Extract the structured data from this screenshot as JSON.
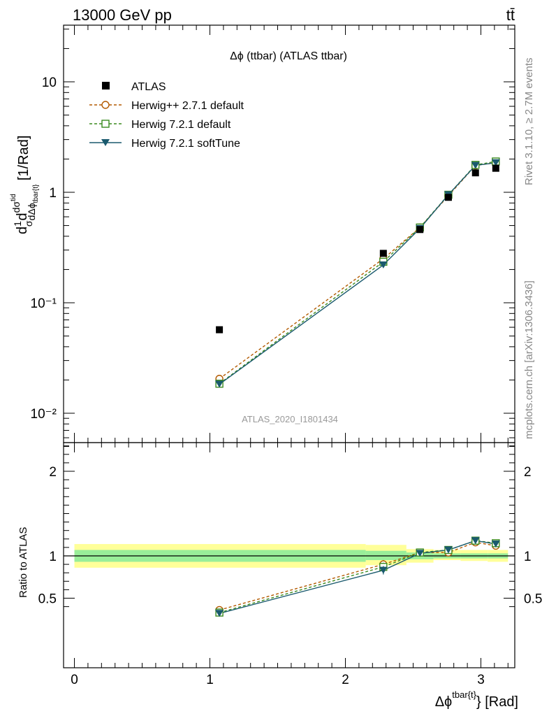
{
  "header": {
    "left": "13000 GeV pp",
    "right": "tt̄"
  },
  "side_labels": {
    "rivet": "Rivet 3.1.10, ≥ 2.7M events",
    "mcplots": "mcplots.cern.ch [arXiv:1306.3436]"
  },
  "chart_data": [
    {
      "type": "line",
      "panel": "main",
      "title": "Δϕ (ttbar) (ATLAS ttbar)",
      "watermark": "ATLAS_2020_I1801434",
      "ylabel": "d¹⁄σd dσ^{tid} / dΔϕ^{tbar{t}} [1/Rad]",
      "yscale": "log",
      "ylim": [
        0.005,
        35
      ],
      "xlim": [
        -0.08,
        3.25
      ],
      "y_tick_labels": [
        "10",
        "1",
        "10⁻¹",
        "10⁻²"
      ],
      "legend": {
        "placement": "top-left"
      },
      "data_points": {
        "name": "ATLAS",
        "x": [
          1.07,
          2.28,
          2.55,
          2.76,
          2.96,
          3.11
        ],
        "y": [
          0.057,
          0.28,
          0.46,
          0.9,
          1.5,
          1.65
        ]
      },
      "series": [
        {
          "name": "Herwig++ 2.7.1 default",
          "color": "#b35a00",
          "dash": "dashed",
          "marker": "open-circle",
          "x": [
            1.07,
            2.28,
            2.55,
            2.76,
            2.96,
            3.11
          ],
          "y": [
            0.0205,
            0.25,
            0.48,
            0.93,
            1.75,
            1.85
          ]
        },
        {
          "name": "Herwig 7.2.1 default",
          "color": "#3a8a1e",
          "dash": "dashed",
          "marker": "open-square",
          "x": [
            1.07,
            2.28,
            2.55,
            2.76,
            2.96,
            3.11
          ],
          "y": [
            0.0185,
            0.235,
            0.48,
            0.95,
            1.77,
            1.9
          ]
        },
        {
          "name": "Herwig 7.2.1 softTune",
          "color": "#1a5a6e",
          "dash": "solid",
          "marker": "filled-triangle-down",
          "x": [
            1.07,
            2.28,
            2.55,
            2.76,
            2.96,
            3.11
          ],
          "y": [
            0.0183,
            0.22,
            0.47,
            0.95,
            1.75,
            1.85
          ]
        }
      ]
    },
    {
      "type": "line",
      "panel": "ratio",
      "ylabel": "Ratio to ATLAS",
      "xlabel": "Δϕ^{tbar{t}} [Rad]",
      "ylim": [
        0.35,
        2.35
      ],
      "xlim": [
        -0.08,
        3.25
      ],
      "x_tick_labels": [
        "0",
        "1",
        "2",
        "3"
      ],
      "y_tick_labels": [
        "2",
        "1",
        "0.5"
      ],
      "bands": {
        "edges": [
          0.0,
          2.15,
          2.45,
          2.65,
          2.85,
          3.05,
          3.2
        ],
        "yellow_lo": [
          0.86,
          0.89,
          0.92,
          0.95,
          0.94,
          0.93
        ],
        "yellow_hi": [
          1.14,
          1.13,
          1.08,
          1.07,
          1.07,
          1.07
        ],
        "green_lo": [
          0.93,
          0.95,
          0.96,
          0.97,
          0.97,
          0.97
        ],
        "green_hi": [
          1.07,
          1.06,
          1.04,
          1.03,
          1.03,
          1.03
        ]
      },
      "series": [
        {
          "name": "Herwig++ 2.7.1 default",
          "color": "#b35a00",
          "dash": "dashed",
          "marker": "open-circle",
          "x": [
            1.07,
            2.28,
            2.55,
            2.76,
            2.96,
            3.11
          ],
          "y": [
            0.36,
            0.9,
            1.04,
            1.04,
            1.16,
            1.12
          ],
          "err": [
            0,
            0.05,
            0.03,
            0.02,
            0.02,
            0.02
          ]
        },
        {
          "name": "Herwig 7.2.1 default",
          "color": "#3a8a1e",
          "dash": "dashed",
          "marker": "open-square",
          "x": [
            1.07,
            2.28,
            2.55,
            2.76,
            2.96,
            3.11
          ],
          "y": [
            0.33,
            0.87,
            1.04,
            1.07,
            1.18,
            1.15
          ],
          "err": [
            0,
            0.05,
            0.03,
            0.02,
            0.02,
            0.02
          ]
        },
        {
          "name": "Herwig 7.2.1 softTune",
          "color": "#1a5a6e",
          "dash": "solid",
          "marker": "filled-triangle-down",
          "x": [
            1.07,
            2.28,
            2.55,
            2.76,
            2.96,
            3.11
          ],
          "y": [
            0.32,
            0.83,
            1.03,
            1.07,
            1.18,
            1.14
          ],
          "err": [
            0,
            0.05,
            0.03,
            0.02,
            0.02,
            0.02
          ]
        }
      ]
    }
  ]
}
